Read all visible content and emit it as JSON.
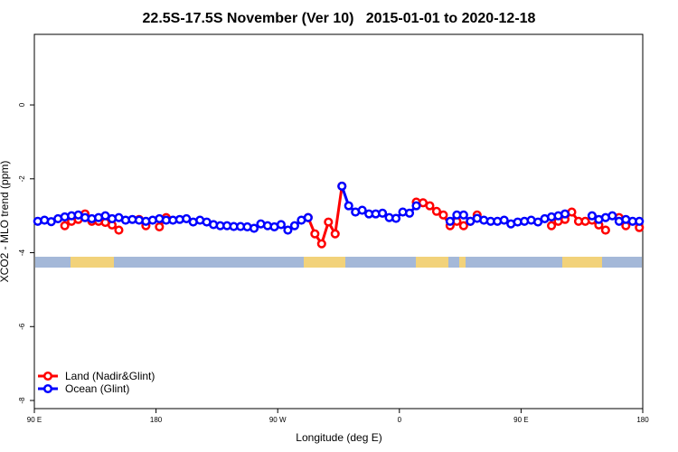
{
  "chart_data": {
    "type": "line",
    "title": "22.5S-17.5S November (Ver 10)   2015-01-01 to 2020-12-18",
    "x_label": "Longitude (deg E)",
    "y_label": "XCO2 - MLO trend (ppm)",
    "x": [
      92.5,
      97.5,
      102.5,
      107.5,
      112.5,
      117.5,
      122.5,
      127.5,
      132.5,
      137.5,
      142.5,
      147.5,
      152.5,
      157.5,
      162.5,
      167.5,
      172.5,
      177.5,
      182.5,
      187.5,
      192.5,
      197.5,
      202.5,
      207.5,
      212.5,
      217.5,
      222.5,
      227.5,
      232.5,
      237.5,
      242.5,
      247.5,
      252.5,
      257.5,
      262.5,
      267.5,
      272.5,
      277.5,
      282.5,
      287.5,
      292.5,
      297.5,
      302.5,
      307.5,
      312.5,
      317.5,
      322.5,
      327.5,
      332.5,
      337.5,
      342.5,
      347.5,
      352.5,
      357.5,
      362.5,
      367.5,
      372.5,
      377.5,
      382.5,
      387.5,
      392.5,
      397.5,
      402.5,
      407.5,
      412.5,
      417.5,
      422.5,
      427.5,
      432.5,
      437.5,
      442.5,
      447.5,
      452.5,
      457.5,
      462.5,
      467.5,
      472.5,
      477.5,
      482.5,
      487.5,
      492.5,
      497.5,
      502.5,
      507.5,
      512.5,
      517.5,
      522.5,
      527.5,
      532.5,
      537.5
    ],
    "series": [
      {
        "name": "Land (Nadir&Glint)",
        "color": "#ff0000",
        "values": [
          null,
          null,
          null,
          null,
          -3.27,
          -3.15,
          -3.1,
          -2.95,
          -3.15,
          -3.15,
          -3.18,
          -3.25,
          -3.39,
          null,
          null,
          -3.1,
          -3.27,
          null,
          -3.3,
          -3.05,
          null,
          null,
          null,
          null,
          null,
          null,
          null,
          null,
          null,
          null,
          null,
          null,
          null,
          null,
          null,
          null,
          null,
          null,
          null,
          null,
          -3.05,
          -3.49,
          -3.76,
          -3.17,
          -3.49,
          -2.2,
          null,
          null,
          null,
          null,
          null,
          null,
          null,
          null,
          null,
          null,
          -2.63,
          -2.65,
          -2.73,
          -2.88,
          -2.98,
          -3.27,
          -3.15,
          -3.27,
          -3.15,
          -2.98,
          null,
          null,
          null,
          null,
          null,
          null,
          null,
          null,
          null,
          null,
          -3.27,
          -3.15,
          -3.1,
          -2.9,
          -3.15,
          -3.15,
          -3.12,
          -3.25,
          -3.39,
          null,
          -3.05,
          -3.27,
          null,
          -3.32
        ]
      },
      {
        "name": "Ocean (Glint)",
        "color": "#0000ff",
        "values": [
          -3.15,
          -3.12,
          -3.16,
          -3.08,
          -3.03,
          -3.0,
          -2.98,
          -3.05,
          -3.08,
          -3.05,
          -3.0,
          -3.08,
          -3.05,
          -3.12,
          -3.1,
          -3.12,
          -3.15,
          -3.12,
          -3.08,
          -3.12,
          -3.12,
          -3.1,
          -3.08,
          -3.17,
          -3.12,
          -3.17,
          -3.24,
          -3.27,
          -3.27,
          -3.29,
          -3.29,
          -3.3,
          -3.34,
          -3.22,
          -3.27,
          -3.3,
          -3.24,
          -3.39,
          -3.27,
          -3.12,
          -3.05,
          null,
          null,
          null,
          null,
          -2.2,
          -2.73,
          -2.9,
          -2.85,
          -2.95,
          -2.95,
          -2.93,
          -3.05,
          -3.07,
          -2.9,
          -2.93,
          -2.73,
          null,
          null,
          null,
          null,
          -3.15,
          -2.98,
          -2.98,
          -3.15,
          -3.07,
          -3.12,
          -3.15,
          -3.15,
          -3.12,
          -3.22,
          -3.17,
          -3.15,
          -3.12,
          -3.17,
          -3.08,
          -3.03,
          -3.0,
          -2.95,
          null,
          null,
          null,
          -3.0,
          -3.1,
          -3.05,
          -3.0,
          -3.15,
          -3.1,
          -3.15,
          -3.15
        ]
      }
    ],
    "xlim": [
      90,
      540
    ],
    "xticks": [
      {
        "value": 90,
        "label": "90 E"
      },
      {
        "value": 180,
        "label": "180"
      },
      {
        "value": 270,
        "label": "90 W"
      },
      {
        "value": 360,
        "label": "0"
      },
      {
        "value": 450,
        "label": "90 E"
      },
      {
        "value": 540,
        "label": "180"
      }
    ],
    "ylim": [
      -8.22,
      1.91
    ],
    "yticks": [
      0,
      -2,
      -4,
      -6,
      -8
    ],
    "legend": "bottomleft"
  }
}
